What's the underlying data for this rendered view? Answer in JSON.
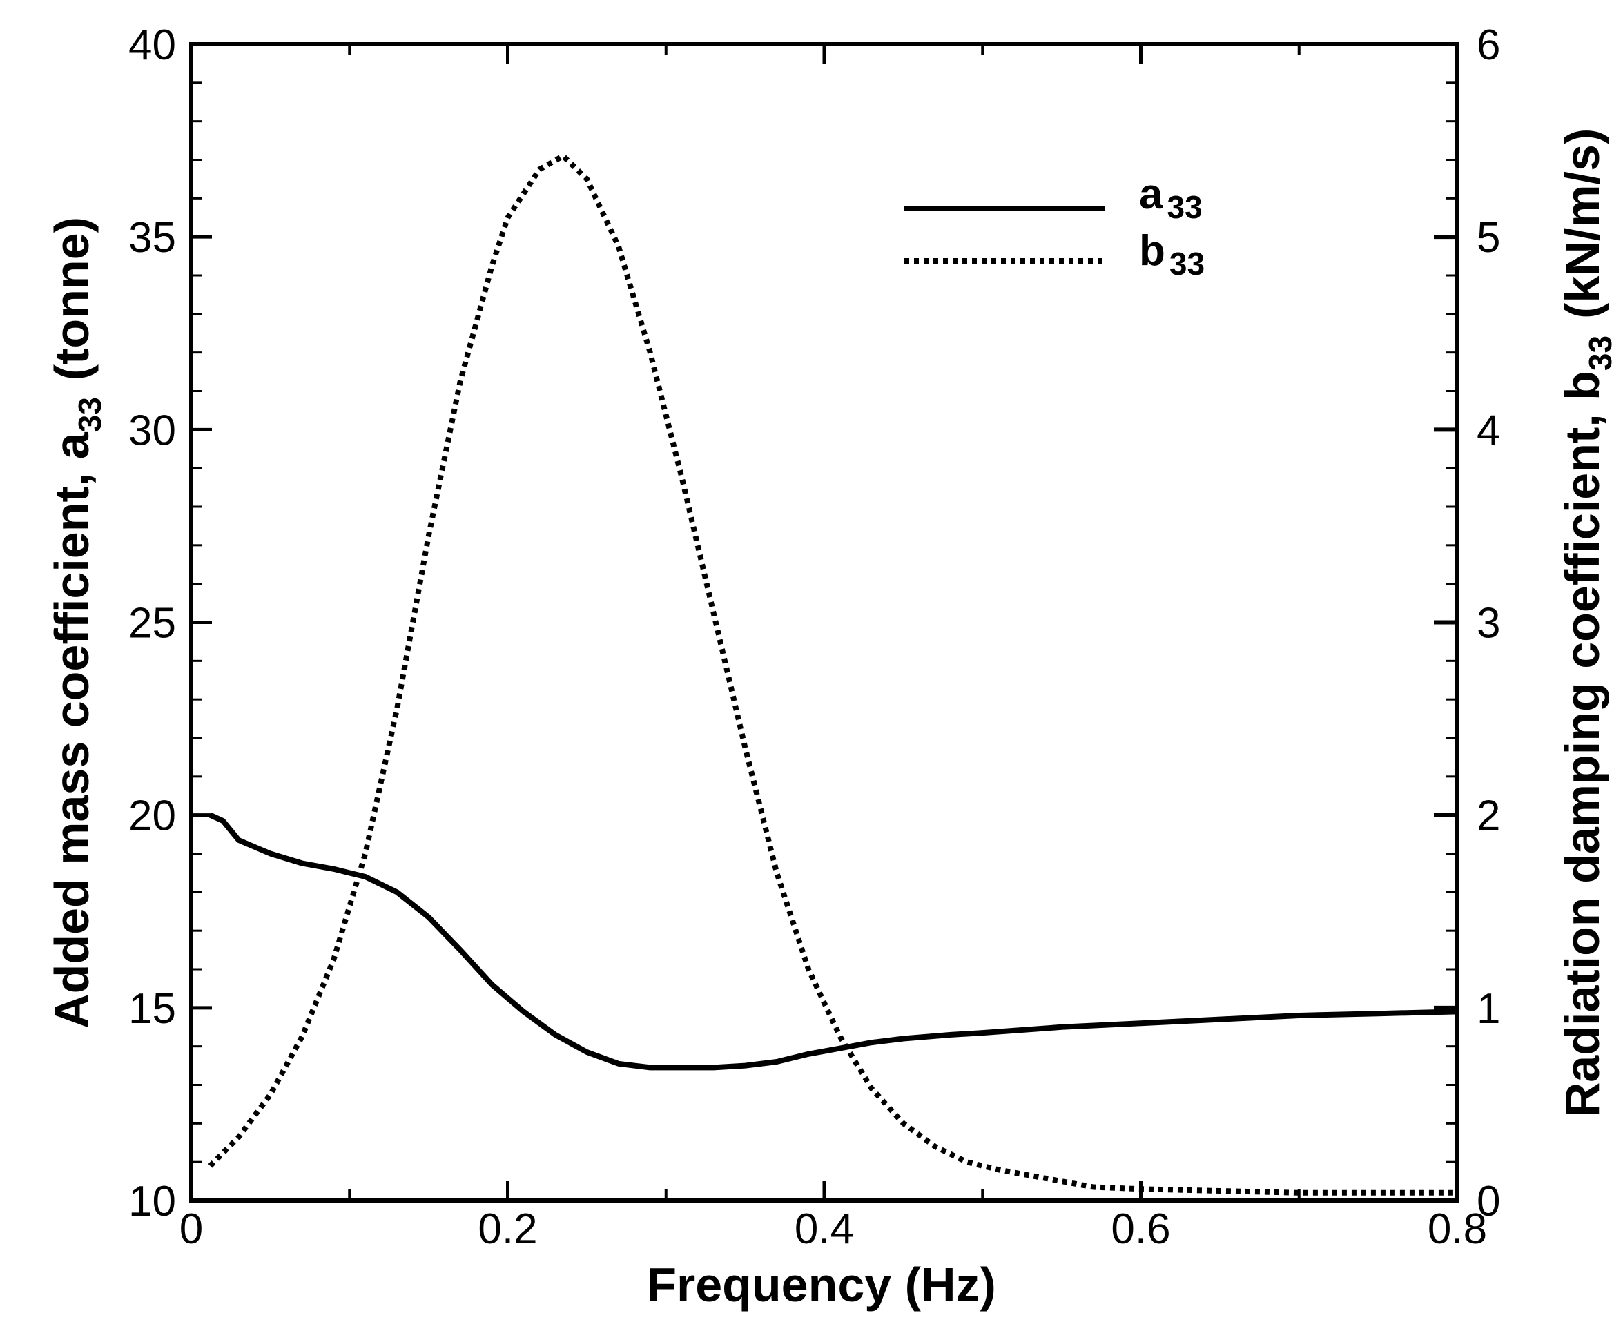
{
  "chart_data": {
    "type": "line",
    "title": "",
    "xlabel": "Frequency (Hz)",
    "ylabel": {
      "text": "Added mass coefficient, a",
      "sub": "33",
      "unit": "(tonne)"
    },
    "y2label": {
      "text": "Radiation damping coefficient, b",
      "sub": "33",
      "unit": "(kN/m/s)"
    },
    "xlim": [
      0,
      0.8
    ],
    "ylim": [
      10,
      40
    ],
    "y2lim": [
      0,
      6
    ],
    "grid": false,
    "legend_position": "top-right",
    "x_ticks": [
      "0",
      "0.2",
      "0.4",
      "0.6",
      "0.8"
    ],
    "y_ticks": [
      "10",
      "15",
      "20",
      "25",
      "30",
      "35",
      "40"
    ],
    "y2_ticks": [
      "0",
      "1",
      "2",
      "3",
      "4",
      "5",
      "6"
    ],
    "series": [
      {
        "name": "a33",
        "label": "a",
        "label_sub": "33",
        "axis": "left",
        "style": "solid",
        "x": [
          0.012,
          0.02,
          0.03,
          0.05,
          0.07,
          0.09,
          0.11,
          0.13,
          0.15,
          0.17,
          0.19,
          0.21,
          0.23,
          0.25,
          0.27,
          0.29,
          0.31,
          0.33,
          0.35,
          0.37,
          0.39,
          0.41,
          0.43,
          0.45,
          0.48,
          0.5,
          0.55,
          0.6,
          0.65,
          0.7,
          0.75,
          0.8
        ],
        "values": [
          20.0,
          19.85,
          19.35,
          19.0,
          18.75,
          18.6,
          18.4,
          18.0,
          17.35,
          16.5,
          15.6,
          14.9,
          14.3,
          13.85,
          13.55,
          13.45,
          13.45,
          13.45,
          13.5,
          13.6,
          13.8,
          13.95,
          14.1,
          14.2,
          14.3,
          14.35,
          14.5,
          14.6,
          14.7,
          14.8,
          14.85,
          14.9
        ]
      },
      {
        "name": "b33",
        "label": "b",
        "label_sub": "33",
        "axis": "right",
        "style": "dotted",
        "x": [
          0.012,
          0.03,
          0.05,
          0.07,
          0.09,
          0.11,
          0.13,
          0.15,
          0.17,
          0.19,
          0.2,
          0.22,
          0.235,
          0.25,
          0.27,
          0.29,
          0.31,
          0.33,
          0.35,
          0.37,
          0.39,
          0.41,
          0.43,
          0.45,
          0.47,
          0.49,
          0.51,
          0.53,
          0.55,
          0.57,
          0.6,
          0.65,
          0.7,
          0.75,
          0.8
        ],
        "values": [
          0.18,
          0.33,
          0.55,
          0.85,
          1.25,
          1.8,
          2.55,
          3.45,
          4.25,
          4.85,
          5.1,
          5.35,
          5.42,
          5.3,
          4.95,
          4.4,
          3.75,
          3.05,
          2.35,
          1.7,
          1.2,
          0.85,
          0.58,
          0.4,
          0.28,
          0.2,
          0.16,
          0.13,
          0.1,
          0.07,
          0.06,
          0.05,
          0.04,
          0.04,
          0.04
        ]
      }
    ]
  }
}
